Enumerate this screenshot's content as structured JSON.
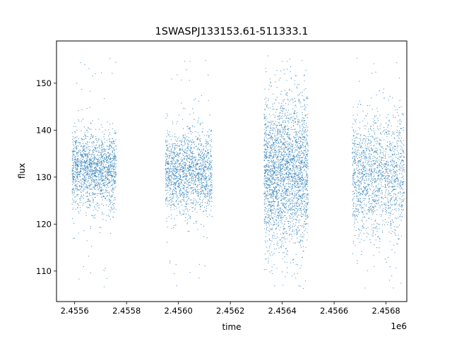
{
  "chart_data": {
    "type": "scatter",
    "title": "1SWASPJ133153.61-511333.1",
    "xlabel": "time",
    "ylabel": "flux",
    "x_offset_label": "1e6",
    "xlim": [
      2455530,
      2456880
    ],
    "ylim": [
      103.5,
      159
    ],
    "x_ticks": [
      {
        "value": 2455600,
        "label": "2.4556"
      },
      {
        "value": 2455800,
        "label": "2.4558"
      },
      {
        "value": 2456000,
        "label": "2.4560"
      },
      {
        "value": 2456200,
        "label": "2.4562"
      },
      {
        "value": 2456400,
        "label": "2.4564"
      },
      {
        "value": 2456600,
        "label": "2.4566"
      },
      {
        "value": 2456800,
        "label": "2.4568"
      }
    ],
    "y_ticks": [
      {
        "value": 110,
        "label": "110"
      },
      {
        "value": 120,
        "label": "120"
      },
      {
        "value": 130,
        "label": "130"
      },
      {
        "value": 140,
        "label": "140"
      },
      {
        "value": 150,
        "label": "150"
      }
    ],
    "grid": false,
    "point_color": "#1f77b4",
    "seasons": [
      {
        "x_start": 2455590,
        "x_end": 2455760,
        "center": 131.5,
        "spread": 4.0,
        "density": "high"
      },
      {
        "x_start": 2455950,
        "x_end": 2456130,
        "center": 131.0,
        "spread": 4.5,
        "density": "high"
      },
      {
        "x_start": 2456330,
        "x_end": 2456500,
        "center": 131.0,
        "spread": 8.0,
        "density": "very high"
      },
      {
        "x_start": 2456670,
        "x_end": 2456870,
        "center": 130.5,
        "spread": 6.5,
        "density": "high"
      }
    ]
  }
}
